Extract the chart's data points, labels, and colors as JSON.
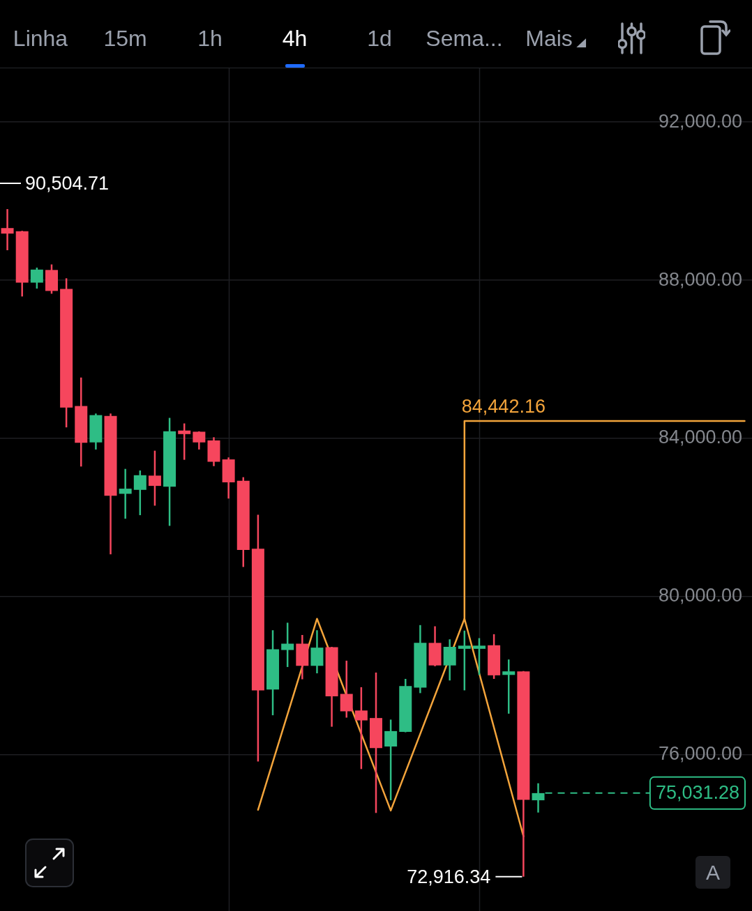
{
  "chart_data": {
    "type": "candlestick",
    "categories": [
      null,
      null,
      null,
      null,
      null,
      null,
      null,
      null,
      null,
      null,
      null,
      null,
      null,
      null,
      null,
      null,
      null,
      null,
      null,
      null,
      null,
      null,
      null,
      null,
      null,
      null,
      null,
      null,
      null,
      null,
      null,
      null,
      null,
      null,
      null,
      null,
      null,
      null,
      null,
      null,
      null,
      null,
      null,
      null,
      null,
      null,
      null,
      null,
      null,
      null,
      null
    ],
    "ohlc": [
      [
        89320,
        89800,
        88760,
        89180
      ],
      [
        89240,
        89250,
        87590,
        87940
      ],
      [
        87940,
        88320,
        87790,
        88270
      ],
      [
        88260,
        88400,
        87660,
        87730
      ],
      [
        87780,
        88050,
        84280,
        84780
      ],
      [
        84820,
        85540,
        83290,
        83890
      ],
      [
        83900,
        84630,
        83720,
        84590
      ],
      [
        84570,
        84630,
        81070,
        82550
      ],
      [
        82600,
        83230,
        81970,
        82730
      ],
      [
        82700,
        83190,
        82060,
        83070
      ],
      [
        83060,
        83690,
        82300,
        82800
      ],
      [
        82780,
        84520,
        81790,
        84180
      ],
      [
        84200,
        84380,
        83460,
        84110
      ],
      [
        84170,
        84180,
        83720,
        83900
      ],
      [
        83950,
        84030,
        83300,
        83410
      ],
      [
        83470,
        83520,
        82480,
        82890
      ],
      [
        82930,
        83020,
        80750,
        81180
      ],
      [
        81210,
        82070,
        75830,
        77630
      ],
      [
        77650,
        79150,
        77000,
        78670
      ],
      [
        78650,
        79340,
        78220,
        78810
      ],
      [
        78810,
        79030,
        77910,
        78250
      ],
      [
        78250,
        79150,
        78060,
        78710
      ],
      [
        78720,
        78730,
        76710,
        77480
      ],
      [
        77540,
        78380,
        76940,
        77100
      ],
      [
        77120,
        77710,
        75640,
        76870
      ],
      [
        76930,
        78080,
        74530,
        76170
      ],
      [
        76210,
        76890,
        74850,
        76600
      ],
      [
        76580,
        77920,
        76570,
        77740
      ],
      [
        77700,
        79280,
        77560,
        78830
      ],
      [
        78830,
        79250,
        78240,
        78260
      ],
      [
        78260,
        78920,
        77880,
        78730
      ],
      [
        78680,
        79140,
        77630,
        78760
      ],
      [
        78680,
        78950,
        78020,
        78760
      ],
      [
        78770,
        79050,
        77920,
        78010
      ],
      [
        78020,
        78410,
        77040,
        78110
      ],
      [
        78110,
        78120,
        72916.34,
        74860
      ],
      [
        74850,
        75280,
        74540,
        75031.28
      ],
      null,
      null,
      null,
      null,
      null,
      null,
      null,
      null,
      null,
      null,
      null,
      null,
      null,
      null
    ],
    "colors": [
      "#f6465d",
      "#f6465d",
      "#2ebd85",
      "#f6465d",
      "#f6465d",
      "#f6465d",
      "#2ebd85",
      "#f6465d",
      "#2ebd85",
      "#2ebd85",
      "#f6465d",
      "#2ebd85",
      "#f6465d",
      "#f6465d",
      "#f6465d",
      "#f6465d",
      "#f6465d",
      "#f6465d",
      "#2ebd85",
      "#2ebd85",
      "#f6465d",
      "#2ebd85",
      "#f6465d",
      "#f6465d",
      "#f6465d",
      "#f6465d",
      "#2ebd85",
      "#2ebd85",
      "#2ebd85",
      "#f6465d",
      "#2ebd85",
      "#2ebd85",
      "#2ebd85",
      "#f6465d",
      "#2ebd85",
      "#f6465d",
      "#2ebd85",
      null,
      null,
      null,
      null,
      null,
      null,
      null,
      null,
      null,
      null,
      null,
      null,
      null,
      null
    ],
    "series": [
      {
        "type": "line",
        "color": "#f3a43b",
        "values": [
          null,
          null,
          null,
          null,
          null,
          null,
          null,
          null,
          null,
          null,
          null,
          null,
          null,
          null,
          null,
          null,
          null,
          74610,
          null,
          null,
          null,
          79440,
          null,
          null,
          null,
          null,
          74590,
          null,
          null,
          null,
          null,
          79440,
          null,
          null,
          null,
          73940,
          null,
          null,
          null,
          null,
          null,
          null,
          null,
          null,
          null,
          null,
          null,
          null,
          null,
          null,
          null
        ]
      },
      {
        "type": "step",
        "color": "#f3a43b",
        "values": [
          null,
          null,
          null,
          null,
          null,
          null,
          null,
          null,
          null,
          null,
          null,
          null,
          null,
          null,
          null,
          null,
          null,
          null,
          null,
          null,
          null,
          null,
          null,
          null,
          null,
          null,
          null,
          null,
          null,
          null,
          null,
          79440,
          null,
          null,
          null,
          null,
          null,
          null,
          null,
          null,
          null,
          null,
          null,
          null,
          null,
          null,
          null,
          null,
          null,
          null,
          84442.16
        ]
      }
    ],
    "ylim": [
      72050,
      93360
    ],
    "yticks": [
      {
        "value": 76000,
        "label": "76,000.00"
      },
      {
        "value": 80000,
        "label": "80,000.00"
      },
      {
        "value": 84000,
        "label": "84,000.00"
      },
      {
        "value": 88000,
        "label": "88,000.00"
      },
      {
        "value": 92000,
        "label": "92,000.00"
      }
    ],
    "grid": "y",
    "tick_labels": "y",
    "ref_lines": [
      {
        "axis": "y",
        "value": 75031.28,
        "label": "75,031.28",
        "color": "#2ebd85",
        "line_style": "dashed"
      }
    ],
    "annotations": [
      "Linha",
      "15m",
      "1h",
      "4h",
      "1d",
      "Sema...",
      "Mais",
      "A",
      "90,504.71",
      "72,916.34",
      {
        "text": "84,442.16",
        "y": 84442.16
      }
    ]
  }
}
